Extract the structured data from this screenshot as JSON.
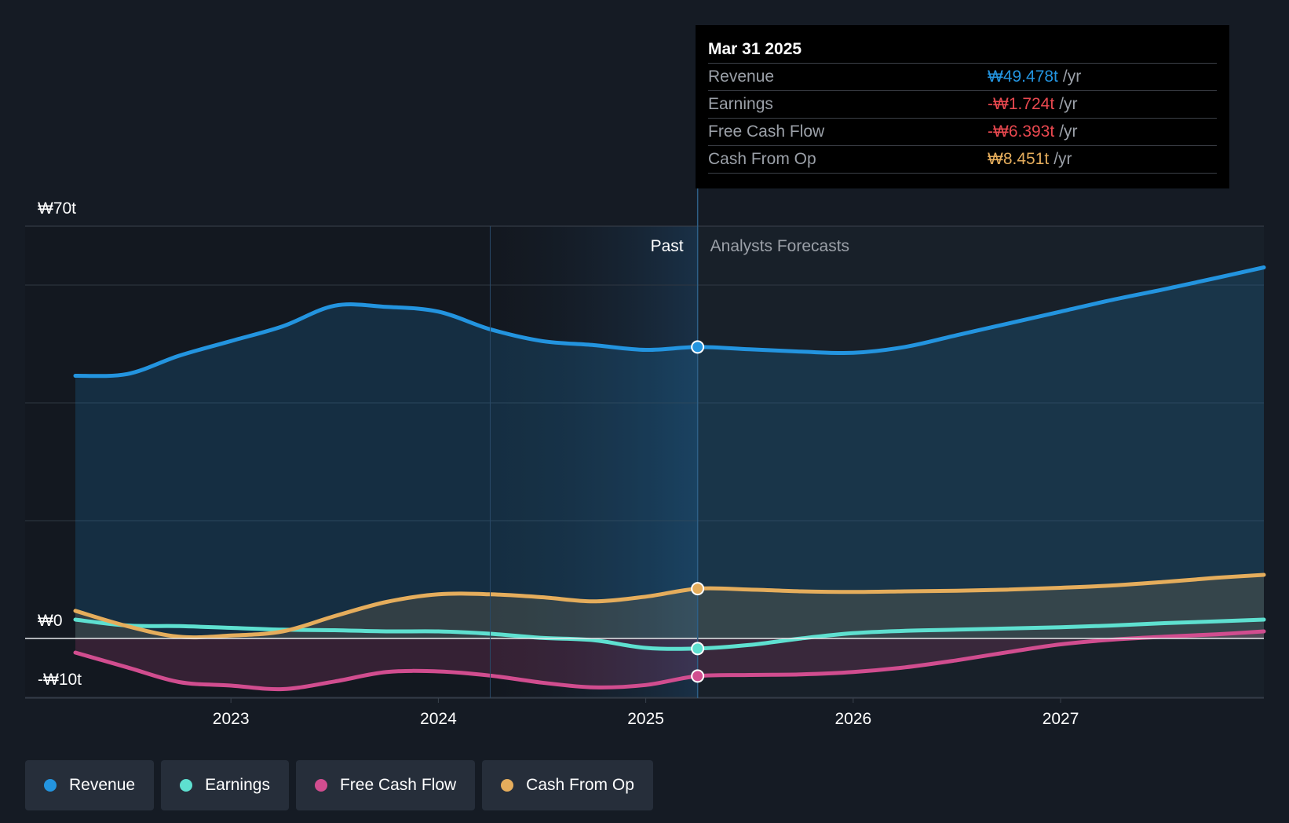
{
  "chart_data": {
    "type": "line",
    "y_unit_prefix": "₩",
    "ylim": [
      -10,
      70
    ],
    "y_tick_labels": [
      {
        "value": 70,
        "label": "₩70t"
      },
      {
        "value": 0,
        "label": "₩0"
      },
      {
        "value": -10,
        "label": "-₩10t"
      }
    ],
    "y_gridlines": [
      70,
      60,
      40,
      20,
      0,
      -10
    ],
    "x_range": [
      2022.0,
      2027.98
    ],
    "x_ticks": [
      {
        "value": 2023.0,
        "label": "2023"
      },
      {
        "value": 2024.0,
        "label": "2024"
      },
      {
        "value": 2025.0,
        "label": "2025"
      },
      {
        "value": 2026.0,
        "label": "2026"
      },
      {
        "value": 2027.0,
        "label": "2027"
      }
    ],
    "past_label": "Past",
    "forecast_label": "Analysts Forecasts",
    "highlight_start": 2024.25,
    "divider_x": 2025.25,
    "series": [
      {
        "name": "Revenue",
        "color": "#2394df",
        "fill": true,
        "fill_opacity": 0.18,
        "points": [
          [
            2022.25,
            44.6
          ],
          [
            2022.5,
            44.9
          ],
          [
            2022.75,
            48.0
          ],
          [
            2023.0,
            50.5
          ],
          [
            2023.25,
            53.0
          ],
          [
            2023.5,
            56.5
          ],
          [
            2023.75,
            56.3
          ],
          [
            2024.0,
            55.5
          ],
          [
            2024.25,
            52.5
          ],
          [
            2024.5,
            50.5
          ],
          [
            2024.75,
            49.8
          ],
          [
            2025.0,
            49.0
          ],
          [
            2025.25,
            49.48
          ],
          [
            2025.5,
            49.1
          ],
          [
            2025.75,
            48.7
          ],
          [
            2026.0,
            48.5
          ],
          [
            2026.25,
            49.5
          ],
          [
            2026.5,
            51.5
          ],
          [
            2026.75,
            53.5
          ],
          [
            2027.0,
            55.5
          ],
          [
            2027.25,
            57.5
          ],
          [
            2027.5,
            59.3
          ],
          [
            2027.75,
            61.2
          ],
          [
            2027.98,
            63.0
          ]
        ]
      },
      {
        "name": "Earnings",
        "color": "#5ee0d0",
        "fill": false,
        "points": [
          [
            2022.25,
            3.2
          ],
          [
            2022.5,
            2.2
          ],
          [
            2022.75,
            2.1
          ],
          [
            2023.0,
            1.8
          ],
          [
            2023.25,
            1.5
          ],
          [
            2023.5,
            1.4
          ],
          [
            2023.75,
            1.2
          ],
          [
            2024.0,
            1.2
          ],
          [
            2024.25,
            0.8
          ],
          [
            2024.5,
            0.1
          ],
          [
            2024.75,
            -0.3
          ],
          [
            2025.0,
            -1.6
          ],
          [
            2025.25,
            -1.72
          ],
          [
            2025.5,
            -1.1
          ],
          [
            2025.75,
            0.0
          ],
          [
            2026.0,
            0.9
          ],
          [
            2026.25,
            1.3
          ],
          [
            2026.5,
            1.5
          ],
          [
            2026.75,
            1.7
          ],
          [
            2027.0,
            1.9
          ],
          [
            2027.25,
            2.2
          ],
          [
            2027.5,
            2.6
          ],
          [
            2027.75,
            2.9
          ],
          [
            2027.98,
            3.2
          ]
        ]
      },
      {
        "name": "Free Cash Flow",
        "color": "#d14d8f",
        "fill": true,
        "fill_opacity": 0.18,
        "points": [
          [
            2022.25,
            -2.4
          ],
          [
            2022.5,
            -4.9
          ],
          [
            2022.75,
            -7.4
          ],
          [
            2023.0,
            -8.0
          ],
          [
            2023.25,
            -8.6
          ],
          [
            2023.5,
            -7.3
          ],
          [
            2023.75,
            -5.7
          ],
          [
            2024.0,
            -5.6
          ],
          [
            2024.25,
            -6.3
          ],
          [
            2024.5,
            -7.5
          ],
          [
            2024.75,
            -8.3
          ],
          [
            2025.0,
            -7.9
          ],
          [
            2025.25,
            -6.39
          ],
          [
            2025.5,
            -6.2
          ],
          [
            2025.75,
            -6.1
          ],
          [
            2026.0,
            -5.7
          ],
          [
            2026.25,
            -4.9
          ],
          [
            2026.5,
            -3.7
          ],
          [
            2026.75,
            -2.3
          ],
          [
            2027.0,
            -1.0
          ],
          [
            2027.25,
            -0.2
          ],
          [
            2027.5,
            0.3
          ],
          [
            2027.75,
            0.7
          ],
          [
            2027.98,
            1.2
          ]
        ]
      },
      {
        "name": "Cash From Op",
        "color": "#e5ad5c",
        "fill": true,
        "fill_opacity": 0.14,
        "points": [
          [
            2022.25,
            4.7
          ],
          [
            2022.5,
            2.1
          ],
          [
            2022.75,
            0.3
          ],
          [
            2023.0,
            0.5
          ],
          [
            2023.25,
            1.2
          ],
          [
            2023.5,
            3.8
          ],
          [
            2023.75,
            6.2
          ],
          [
            2024.0,
            7.5
          ],
          [
            2024.25,
            7.5
          ],
          [
            2024.5,
            7.0
          ],
          [
            2024.75,
            6.3
          ],
          [
            2025.0,
            7.1
          ],
          [
            2025.25,
            8.45
          ],
          [
            2025.5,
            8.3
          ],
          [
            2025.75,
            8.0
          ],
          [
            2026.0,
            7.9
          ],
          [
            2026.25,
            8.0
          ],
          [
            2026.5,
            8.1
          ],
          [
            2026.75,
            8.3
          ],
          [
            2027.0,
            8.6
          ],
          [
            2027.25,
            9.0
          ],
          [
            2027.5,
            9.6
          ],
          [
            2027.75,
            10.3
          ],
          [
            2027.98,
            10.8
          ]
        ]
      }
    ],
    "highlight_points": [
      {
        "series": "Revenue",
        "x": 2025.25,
        "y": 49.48
      },
      {
        "series": "Cash From Op",
        "x": 2025.25,
        "y": 8.45
      },
      {
        "series": "Earnings",
        "x": 2025.25,
        "y": -1.72
      },
      {
        "series": "Free Cash Flow",
        "x": 2025.25,
        "y": -6.39
      }
    ]
  },
  "tooltip": {
    "date": "Mar 31 2025",
    "unit": "/yr",
    "rows": [
      {
        "label": "Revenue",
        "value": "₩49.478t",
        "color": "#2394df"
      },
      {
        "label": "Earnings",
        "value": "-₩1.724t",
        "color": "#e8484f"
      },
      {
        "label": "Free Cash Flow",
        "value": "-₩6.393t",
        "color": "#e8484f"
      },
      {
        "label": "Cash From Op",
        "value": "₩8.451t",
        "color": "#e5ad5c"
      }
    ]
  },
  "legend": {
    "items": [
      {
        "label": "Revenue",
        "color": "#2394df"
      },
      {
        "label": "Earnings",
        "color": "#5ee0d0"
      },
      {
        "label": "Free Cash Flow",
        "color": "#d14d8f"
      },
      {
        "label": "Cash From Op",
        "color": "#e5ad5c"
      }
    ]
  }
}
